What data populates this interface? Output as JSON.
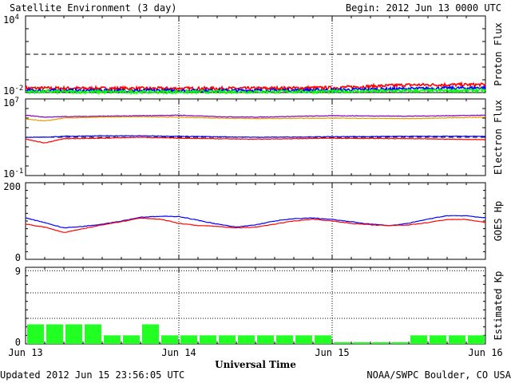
{
  "header": {
    "title": "Satellite Environment (3 day)",
    "begin": "Begin:  2012 Jun 13 0000 UTC"
  },
  "footer": {
    "updated": "Updated 2012 Jun 15 23:56:05 UTC",
    "credit": "NOAA/SWPC Boulder, CO USA"
  },
  "x_axis": {
    "label": "Universal Time",
    "ticks": [
      "Jun 13",
      "Jun 14",
      "Jun 15",
      "Jun 16"
    ]
  },
  "colors": {
    "red": "#ff0000",
    "blue": "#0000ff",
    "green": "#00ff00",
    "orange": "#e69a00",
    "purple": "#8000c0",
    "kp_bar": "#22ff22"
  },
  "chart_data": [
    {
      "type": "line",
      "name": "proton",
      "ylabel": "Proton Flux",
      "scale": "log",
      "ylim_exp": [
        -2,
        4
      ],
      "ytick_labels": [
        {
          "base": "10",
          "exp": "4",
          "v": 4
        },
        {
          "base": "10",
          "exp": "-2",
          "v": -2
        }
      ],
      "threshold_exp": 1,
      "x": [
        0,
        12,
        24,
        36,
        48,
        60,
        72
      ],
      "series": [
        {
          "color": "#ff0000",
          "values": [
            -1.65,
            -1.67,
            -1.68,
            -1.67,
            -1.62,
            -1.4,
            -1.38
          ]
        },
        {
          "color": "#0000ff",
          "values": [
            -1.83,
            -1.85,
            -1.84,
            -1.83,
            -1.8,
            -1.7,
            -1.62
          ]
        },
        {
          "color": "#00ff00",
          "values": [
            -1.93,
            -1.95,
            -1.95,
            -1.94,
            -1.92,
            -1.86,
            -1.83
          ]
        }
      ]
    },
    {
      "type": "line",
      "name": "electron",
      "ylabel": "Electron Flux",
      "scale": "log",
      "ylim_exp": [
        -1,
        7
      ],
      "ytick_labels": [
        {
          "base": "10",
          "exp": "7",
          "v": 7
        },
        {
          "base": "10",
          "exp": "-1",
          "v": -1
        }
      ],
      "threshold_exp": 3,
      "x": [
        0,
        3,
        6,
        12,
        18,
        24,
        30,
        36,
        48,
        60,
        72
      ],
      "series": [
        {
          "color": "#8000c0",
          "values": [
            5.3,
            5.1,
            5.15,
            5.2,
            5.25,
            5.3,
            5.15,
            5.1,
            5.25,
            5.2,
            5.3
          ]
        },
        {
          "color": "#e69a00",
          "values": [
            4.9,
            4.7,
            5.0,
            5.1,
            5.15,
            5.1,
            5.0,
            4.95,
            5.0,
            4.95,
            5.1
          ]
        },
        {
          "color": "#0000ff",
          "values": [
            3.0,
            3.0,
            3.1,
            3.15,
            3.15,
            3.1,
            3.05,
            3.0,
            3.05,
            3.1,
            3.1
          ]
        },
        {
          "color": "#ff0000",
          "values": [
            2.8,
            2.4,
            2.85,
            2.9,
            3.0,
            2.9,
            2.85,
            2.8,
            2.9,
            2.85,
            2.75
          ]
        }
      ]
    },
    {
      "type": "line",
      "name": "hp",
      "ylabel": "GOES Hp",
      "scale": "linear",
      "ylim": [
        0,
        200
      ],
      "yticks": [
        0,
        200
      ],
      "x": [
        0,
        3,
        6,
        9,
        12,
        15,
        18,
        21,
        24,
        27,
        30,
        33,
        36,
        39,
        42,
        45,
        48,
        51,
        54,
        57,
        60,
        63,
        66,
        69,
        72
      ],
      "series": [
        {
          "color": "#0000ff",
          "values": [
            108,
            96,
            82,
            86,
            92,
            100,
            110,
            112,
            112,
            102,
            92,
            84,
            90,
            100,
            106,
            108,
            104,
            98,
            92,
            88,
            94,
            105,
            114,
            114,
            108
          ]
        },
        {
          "color": "#ff0000",
          "values": [
            92,
            84,
            70,
            80,
            90,
            98,
            108,
            105,
            94,
            88,
            86,
            82,
            84,
            92,
            100,
            105,
            100,
            94,
            90,
            88,
            90,
            96,
            104,
            104,
            96
          ]
        }
      ]
    },
    {
      "type": "bar",
      "name": "kp",
      "ylabel": "Estimated Kp",
      "ylim": [
        0,
        9
      ],
      "yticks": [
        0,
        9
      ],
      "bar_hours": 3,
      "values": [
        2.3,
        2.3,
        2.3,
        2.3,
        1,
        1,
        2.3,
        1,
        1,
        1,
        1,
        1,
        1,
        1,
        1,
        1,
        0.2,
        0.2,
        0.2,
        0.2,
        1,
        1,
        1,
        1
      ]
    }
  ]
}
